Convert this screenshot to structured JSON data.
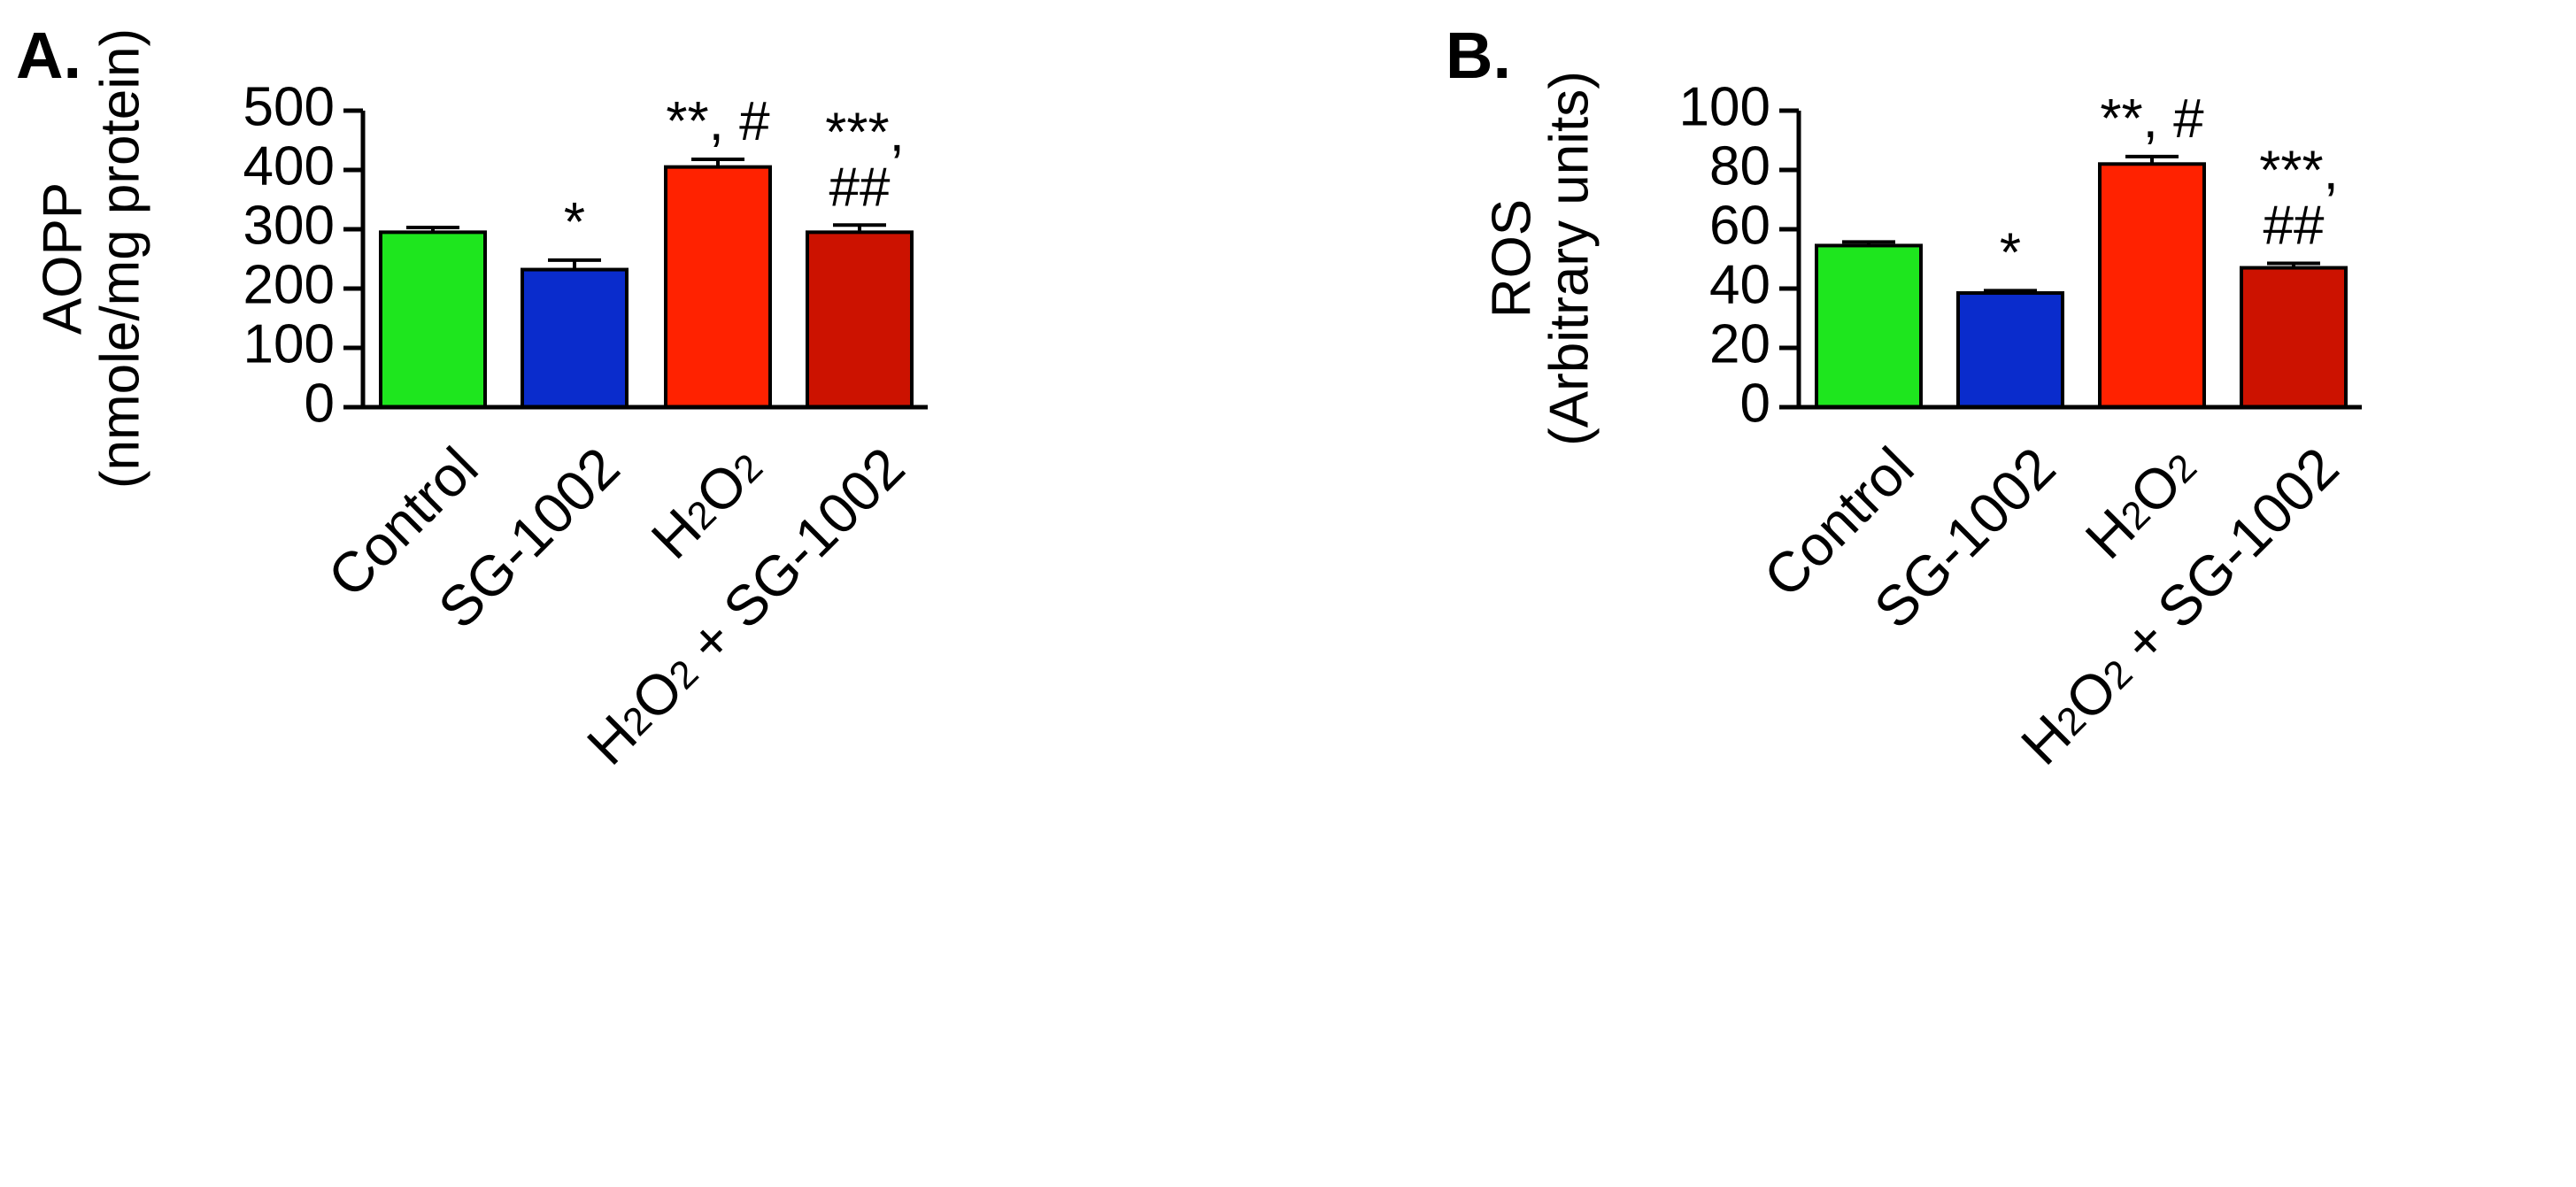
{
  "chart_data": [
    {
      "type": "bar",
      "panel_label": "A.",
      "ylabel_line1": "AOPP",
      "ylabel_line2": "(nmole/mg protein)",
      "xlabel": "",
      "ylim": [
        0,
        500
      ],
      "yticks": [
        0,
        100,
        200,
        300,
        400,
        500
      ],
      "categories": [
        {
          "main": "Control",
          "display": "Control"
        },
        {
          "main": "SG-1002",
          "display": "SG-1002"
        },
        {
          "main": "H2O2",
          "display": "H₂O₂"
        },
        {
          "main": "H2O2 + SG-1002",
          "display": "H₂O₂ + SG-1002"
        }
      ],
      "values": [
        295,
        232,
        405,
        295
      ],
      "errors": [
        8,
        16,
        13,
        12
      ],
      "colors": [
        "#1ee61e",
        "#0a2ccc",
        "#ff2200",
        "#cc1200"
      ],
      "annotations": [
        [],
        [
          "*"
        ],
        [
          "**, #"
        ],
        [
          "***,",
          "##"
        ]
      ]
    },
    {
      "type": "bar",
      "panel_label": "B.",
      "ylabel_line1": "ROS",
      "ylabel_line2": "(Arbitrary units)",
      "xlabel": "",
      "ylim": [
        0,
        100
      ],
      "yticks": [
        0,
        20,
        40,
        60,
        80,
        100
      ],
      "categories": [
        {
          "main": "Control",
          "display": "Control"
        },
        {
          "main": "SG-1002",
          "display": "SG-1002"
        },
        {
          "main": "H2O2",
          "display": "H₂O₂"
        },
        {
          "main": "H2O2 + SG-1002",
          "display": "H₂O₂ + SG-1002"
        }
      ],
      "values": [
        54.5,
        38.5,
        82,
        47
      ],
      "errors": [
        1.2,
        0.8,
        2.5,
        1.5
      ],
      "colors": [
        "#1ee61e",
        "#0a2ccc",
        "#ff2200",
        "#cc1200"
      ],
      "annotations": [
        [],
        [
          "*"
        ],
        [
          "**, #"
        ],
        [
          "***,",
          "##"
        ]
      ]
    }
  ]
}
